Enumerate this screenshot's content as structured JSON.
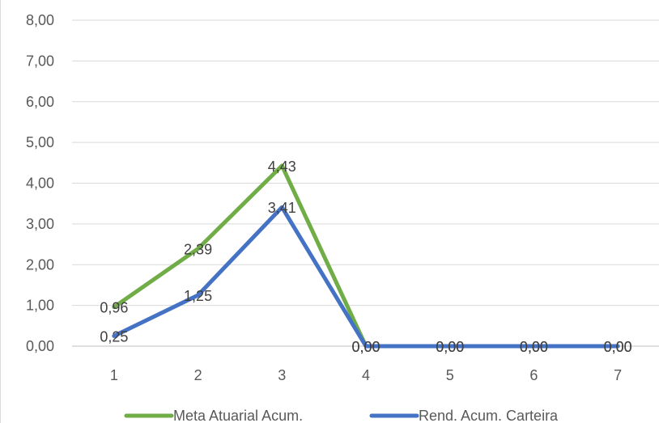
{
  "chart_data": {
    "type": "line",
    "categories": [
      "1",
      "2",
      "3",
      "4",
      "5",
      "6",
      "7"
    ],
    "y_ticks": [
      "0,00",
      "1,00",
      "2,00",
      "3,00",
      "4,00",
      "5,00",
      "6,00",
      "7,00",
      "8,00"
    ],
    "ylim": [
      0,
      8
    ],
    "grid": true,
    "legend_position": "bottom",
    "series": [
      {
        "name": "Meta Atuarial Acum.",
        "color": "#70ad47",
        "values": [
          0.96,
          2.39,
          4.43,
          0,
          0,
          0,
          0
        ],
        "labels": [
          "0,96",
          "2,39",
          "4,43",
          "0,00",
          "0,00",
          "0,00",
          "0,00"
        ]
      },
      {
        "name": "Rend. Acum. Carteira",
        "color": "#4472c4",
        "values": [
          0.25,
          1.25,
          3.41,
          0,
          0,
          0,
          0
        ],
        "labels": [
          "0,25",
          "1,25",
          "3,41",
          "0,00",
          "0,00",
          "0,00",
          "0,00"
        ]
      }
    ]
  }
}
